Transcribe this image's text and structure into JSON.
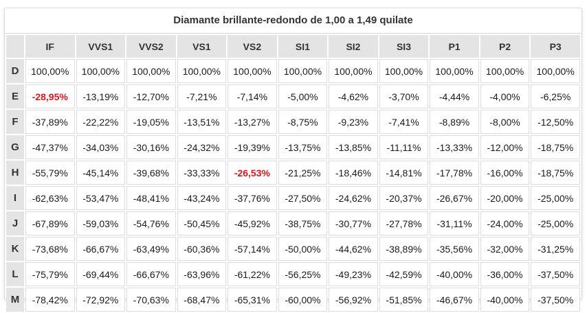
{
  "table": {
    "title": "Diamante brillante-redondo de 1,00 a 1,49 quilate",
    "highlight_color": "#e0161b",
    "columns": [
      "IF",
      "VVS1",
      "VVS2",
      "VS1",
      "VS2",
      "SI1",
      "SI2",
      "SI3",
      "P1",
      "P2",
      "P3"
    ],
    "rows": [
      {
        "label": "D",
        "values": [
          "100,00%",
          "100,00%",
          "100,00%",
          "100,00%",
          "100,00%",
          "100,00%",
          "100,00%",
          "100,00%",
          "100,00%",
          "100,00%",
          "100,00%"
        ],
        "highlight": []
      },
      {
        "label": "E",
        "values": [
          "-28,95%",
          "-13,19%",
          "-12,70%",
          "-7,21%",
          "-7,14%",
          "-5,00%",
          "-4,62%",
          "-3,70%",
          "-4,44%",
          "-4,00%",
          "-6,25%"
        ],
        "highlight": [
          0
        ]
      },
      {
        "label": "F",
        "values": [
          "-37,89%",
          "-22,22%",
          "-19,05%",
          "-13,51%",
          "-13,27%",
          "-8,75%",
          "-9,23%",
          "-7,41%",
          "-8,89%",
          "-8,00%",
          "-12,50%"
        ],
        "highlight": []
      },
      {
        "label": "G",
        "values": [
          "-47,37%",
          "-34,03%",
          "-30,16%",
          "-24,32%",
          "-19,39%",
          "-13,75%",
          "-13,85%",
          "-11,11%",
          "-13,33%",
          "-12,00%",
          "-18,75%"
        ],
        "highlight": []
      },
      {
        "label": "H",
        "values": [
          "-55,79%",
          "-45,14%",
          "-39,68%",
          "-33,33%",
          "-26,53%",
          "-21,25%",
          "-18,46%",
          "-14,81%",
          "-17,78%",
          "-16,00%",
          "-18,75%"
        ],
        "highlight": [
          4
        ]
      },
      {
        "label": "I",
        "values": [
          "-62,63%",
          "-53,47%",
          "-48,41%",
          "-43,24%",
          "-37,76%",
          "-27,50%",
          "-24,62%",
          "-20,37%",
          "-26,67%",
          "-20,00%",
          "-25,00%"
        ],
        "highlight": []
      },
      {
        "label": "J",
        "values": [
          "-67,89%",
          "-59,03%",
          "-54,76%",
          "-50,45%",
          "-45,92%",
          "-38,75%",
          "-30,77%",
          "-27,78%",
          "-31,11%",
          "-24,00%",
          "-25,00%"
        ],
        "highlight": []
      },
      {
        "label": "K",
        "values": [
          "-73,68%",
          "-66,67%",
          "-63,49%",
          "-60,36%",
          "-57,14%",
          "-50,00%",
          "-44,62%",
          "-38,89%",
          "-35,56%",
          "-32,00%",
          "-31,25%"
        ],
        "highlight": []
      },
      {
        "label": "L",
        "values": [
          "-75,79%",
          "-69,44%",
          "-66,67%",
          "-63,96%",
          "-61,22%",
          "-56,25%",
          "-49,23%",
          "-42,59%",
          "-40,00%",
          "-36,00%",
          "-37,50%"
        ],
        "highlight": []
      },
      {
        "label": "M",
        "values": [
          "-78,42%",
          "-72,92%",
          "-70,63%",
          "-68,47%",
          "-65,31%",
          "-60,00%",
          "-56,92%",
          "-51,85%",
          "-46,67%",
          "-40,00%",
          "-37,50%"
        ],
        "highlight": []
      }
    ]
  }
}
